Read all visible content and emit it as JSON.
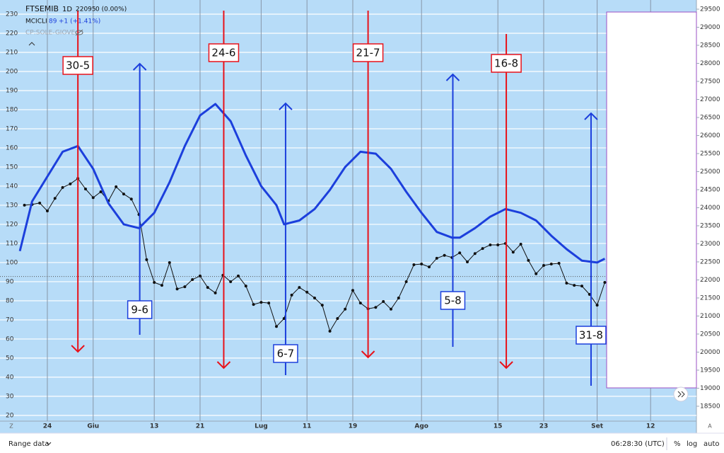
{
  "chart_data": {
    "type": "line",
    "title": "FTSEMIB",
    "interval": "1D",
    "last_price": 22095,
    "change": "0 (0.00%)",
    "indicator_value": 89,
    "indicator_change": "+1 (+1.41%)",
    "study": "CP:SOLE-GIOVE",
    "xlim": [
      -3.2,
      88
    ],
    "xticks": [
      {
        "value": 3,
        "label": "24"
      },
      {
        "value": 9,
        "label": "Giu"
      },
      {
        "value": 17,
        "label": "13"
      },
      {
        "value": 23,
        "label": "21"
      },
      {
        "value": 31,
        "label": "Lug"
      },
      {
        "value": 37,
        "label": "11"
      },
      {
        "value": 43,
        "label": "19"
      },
      {
        "value": 52,
        "label": "Ago"
      },
      {
        "value": 62,
        "label": "15"
      },
      {
        "value": 68,
        "label": "23"
      },
      {
        "value": 75,
        "label": "Set"
      },
      {
        "value": 82,
        "label": "12"
      }
    ],
    "ylim": [
      17,
      237.4
    ],
    "yticks": [
      20,
      30,
      40,
      50,
      60,
      70,
      80,
      90,
      100,
      110,
      120,
      130,
      140,
      150,
      160,
      170,
      180,
      190,
      200,
      210,
      220,
      230
    ],
    "y2lim": [
      18087,
      29755
    ],
    "y2ticks": [
      18500,
      19000,
      19500,
      20000,
      20500,
      21000,
      21500,
      22000,
      22500,
      23000,
      23500,
      24000,
      24500,
      25000,
      25500,
      26000,
      26500,
      27000,
      27500,
      28000,
      28500,
      29000,
      29500
    ],
    "grid": true,
    "series": [
      {
        "name": "FTSEMIB",
        "color": "#111111",
        "axis": "y2",
        "markers": true,
        "x": [
          0,
          1,
          2,
          3,
          4,
          5,
          6,
          7,
          8,
          9,
          10,
          11,
          12,
          13,
          14,
          15,
          16,
          17,
          18,
          19,
          20,
          21,
          22,
          23,
          24,
          25,
          26,
          27,
          28,
          29,
          30,
          31,
          32,
          33,
          34,
          35,
          36,
          37,
          38,
          39,
          40,
          41,
          42,
          43,
          44,
          45,
          46,
          47,
          48,
          49,
          50,
          51,
          52,
          53,
          54,
          55,
          56,
          57,
          58,
          59,
          60,
          61,
          62,
          63,
          64,
          65,
          66,
          67,
          68,
          69,
          70,
          71,
          72,
          73,
          74,
          75,
          76
        ],
        "values": [
          24070,
          24090,
          24130,
          23910,
          24260,
          24560,
          24660,
          24810,
          24520,
          24280,
          24440,
          24190,
          24580,
          24380,
          24240,
          23810,
          22560,
          21930,
          21850,
          22480,
          21750,
          21810,
          22010,
          22110,
          21790,
          21640,
          22130,
          21950,
          22110,
          21830,
          21320,
          21380,
          21360,
          20710,
          20930,
          21580,
          21790,
          21660,
          21500,
          21300,
          20580,
          20930,
          21190,
          21710,
          21360,
          21200,
          21240,
          21400,
          21190,
          21500,
          21950,
          22420,
          22440,
          22360,
          22600,
          22680,
          22620,
          22750,
          22500,
          22730,
          22870,
          22970,
          22970,
          23010,
          22770,
          22990,
          22540,
          22170,
          22400,
          22440,
          22460,
          21910,
          21850,
          21830,
          21600,
          21300,
          21930
        ]
      },
      {
        "name": "MCICLI",
        "color": "#1c3fdc",
        "markers": false,
        "x": [
          -0.6,
          1,
          3,
          5,
          7,
          9,
          11,
          13,
          15,
          17,
          19,
          21,
          23,
          25,
          27,
          29,
          31,
          33,
          34,
          36,
          38,
          40,
          42,
          44,
          46,
          48,
          50,
          52,
          54,
          56,
          57,
          59,
          61,
          63,
          65,
          67,
          69,
          71,
          73,
          75,
          76
        ],
        "values": [
          106,
          132,
          145,
          158,
          161,
          149,
          131,
          120,
          118,
          126,
          142,
          161,
          177,
          183,
          174,
          156,
          140,
          130,
          120,
          122,
          128,
          138,
          150,
          158,
          157,
          149,
          137,
          126,
          116,
          113,
          113,
          118,
          124,
          128,
          126,
          122,
          114,
          107,
          101,
          100,
          102
        ]
      }
    ],
    "annotations": [
      {
        "text": "30-5",
        "x": 7,
        "direction": "down",
        "color": "#e8121a"
      },
      {
        "text": "9-6",
        "x": 15.1,
        "direction": "up",
        "color": "#1c3fdc"
      },
      {
        "text": "24-6",
        "x": 26.1,
        "direction": "down",
        "color": "#e8121a"
      },
      {
        "text": "6-7",
        "x": 34.2,
        "direction": "up",
        "color": "#1c3fdc"
      },
      {
        "text": "21-7",
        "x": 45,
        "direction": "down",
        "color": "#e8121a"
      },
      {
        "text": "5-8",
        "x": 56.1,
        "direction": "up",
        "color": "#1c3fdc"
      },
      {
        "text": "16-8",
        "x": 63.1,
        "direction": "down",
        "color": "#e8121a"
      },
      {
        "text": "31-8",
        "x": 74.2,
        "direction": "up",
        "color": "#1c3fdc"
      }
    ],
    "toolbar": {
      "range": "Range data",
      "time": "06:28:30 (UTC)",
      "percent": "%",
      "log": "log",
      "auto": "auto"
    }
  }
}
